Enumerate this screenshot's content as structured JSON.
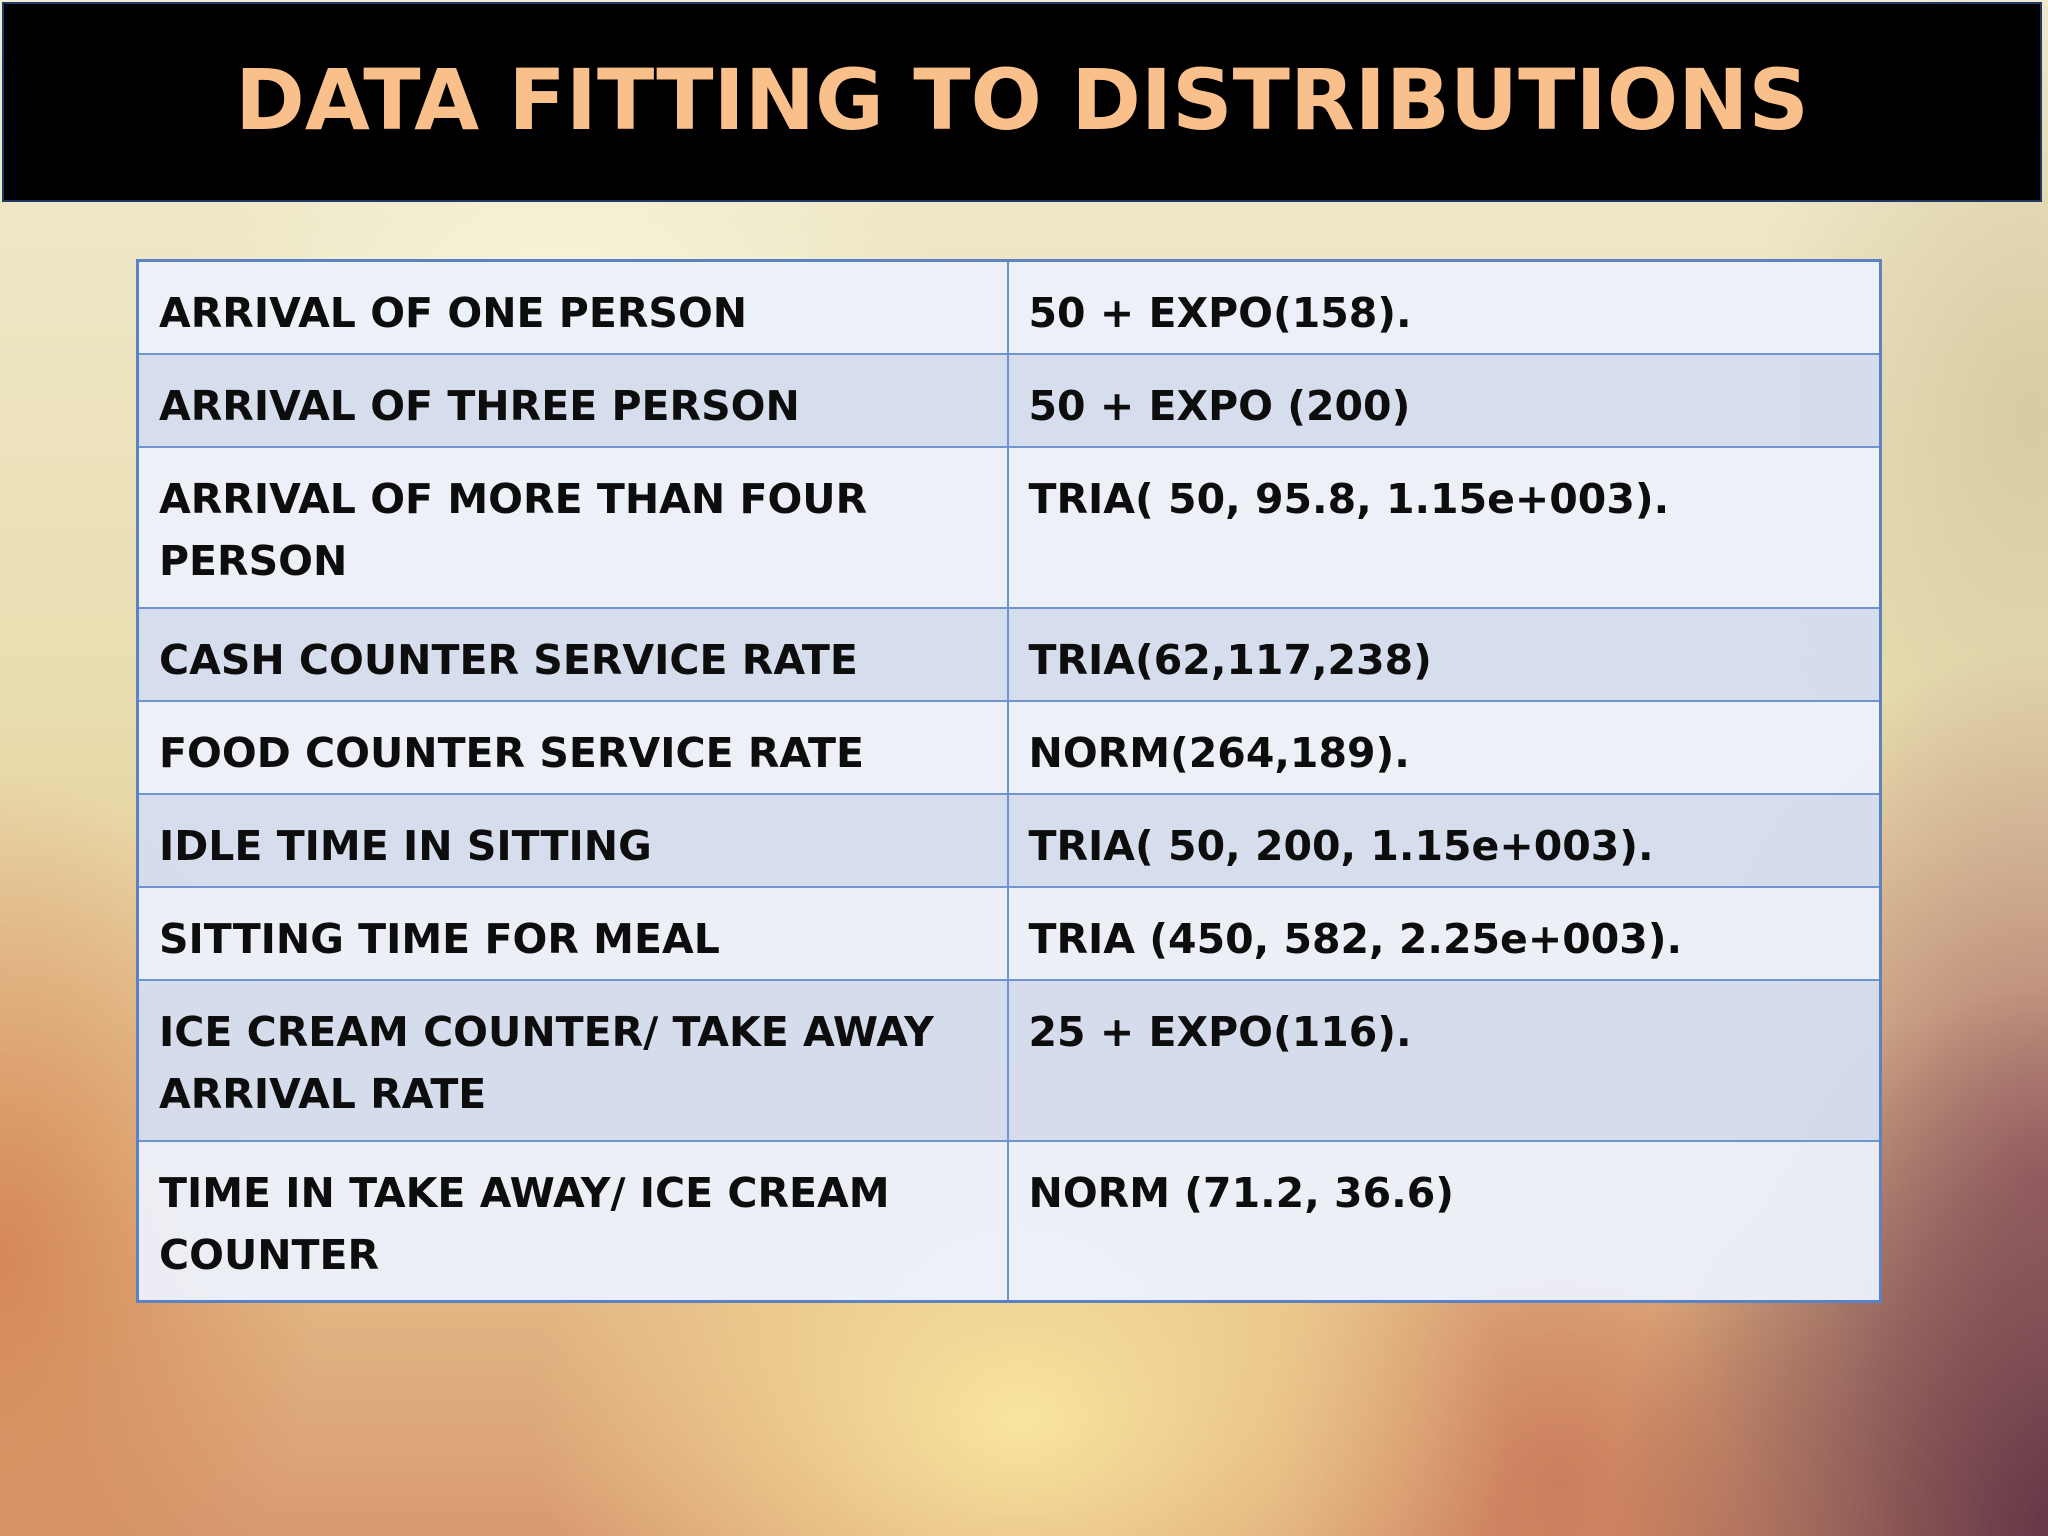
{
  "slide": {
    "title": "DATA FITTING TO DISTRIBUTIONS"
  },
  "table": {
    "rows": [
      {
        "label": "ARRIVAL OF ONE PERSON",
        "value": "50 + EXPO(158)."
      },
      {
        "label": "ARRIVAL OF THREE PERSON",
        "value": "50 + EXPO (200)"
      },
      {
        "label": "ARRIVAL OF MORE THAN FOUR PERSON",
        "value": "TRIA( 50,  95.8, 1.15e+003)."
      },
      {
        "label": "CASH COUNTER SERVICE RATE",
        "value": "TRIA(62,117,238)"
      },
      {
        "label": "FOOD COUNTER SERVICE RATE",
        "value": "NORM(264,189)."
      },
      {
        "label": "IDLE TIME IN SITTING",
        "value": "TRIA( 50, 200, 1.15e+003)."
      },
      {
        "label": "SITTING TIME FOR MEAL",
        "value": "TRIA (450, 582, 2.25e+003)."
      },
      {
        "label": "ICE CREAM COUNTER/ TAKE AWAY ARRIVAL RATE",
        "value": "25 + EXPO(116)."
      },
      {
        "label": "TIME IN TAKE AWAY/ ICE CREAM COUNTER",
        "value": "NORM (71.2, 36.6)"
      }
    ]
  },
  "colors": {
    "title_text": "#f9c08b",
    "title_bar": "#000000",
    "table_border": "#6f94cf",
    "row_light": "#ecf0fa",
    "row_dark": "#d4ddee"
  }
}
